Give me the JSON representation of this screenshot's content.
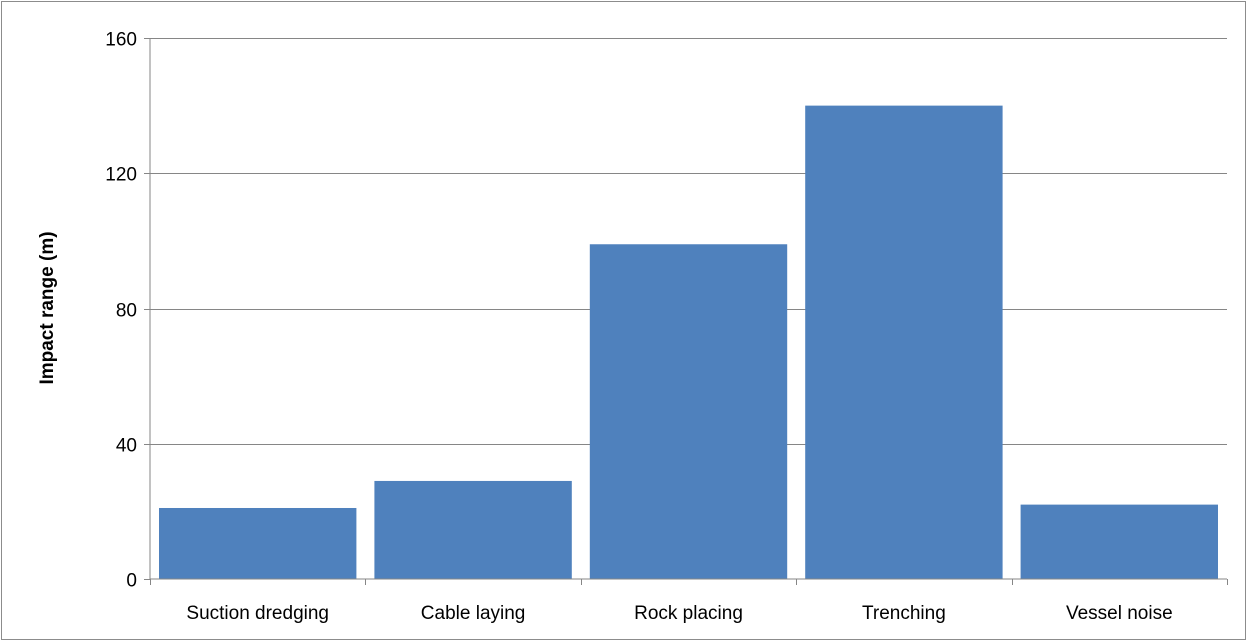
{
  "chart_data": {
    "type": "bar",
    "categories": [
      "Suction dredging",
      "Cable laying",
      "Rock placing",
      "Trenching",
      "Vessel noise"
    ],
    "values": [
      21,
      29,
      99,
      140,
      22
    ],
    "title": "",
    "xlabel": "",
    "ylabel": "Impact range (m)",
    "ylim": [
      0,
      160
    ],
    "yticks": [
      0,
      40,
      80,
      120,
      160
    ],
    "grid": true,
    "legend": "none",
    "colors": {
      "bar": "#4f81bd",
      "grid": "#868686",
      "axis": "#868686"
    }
  }
}
